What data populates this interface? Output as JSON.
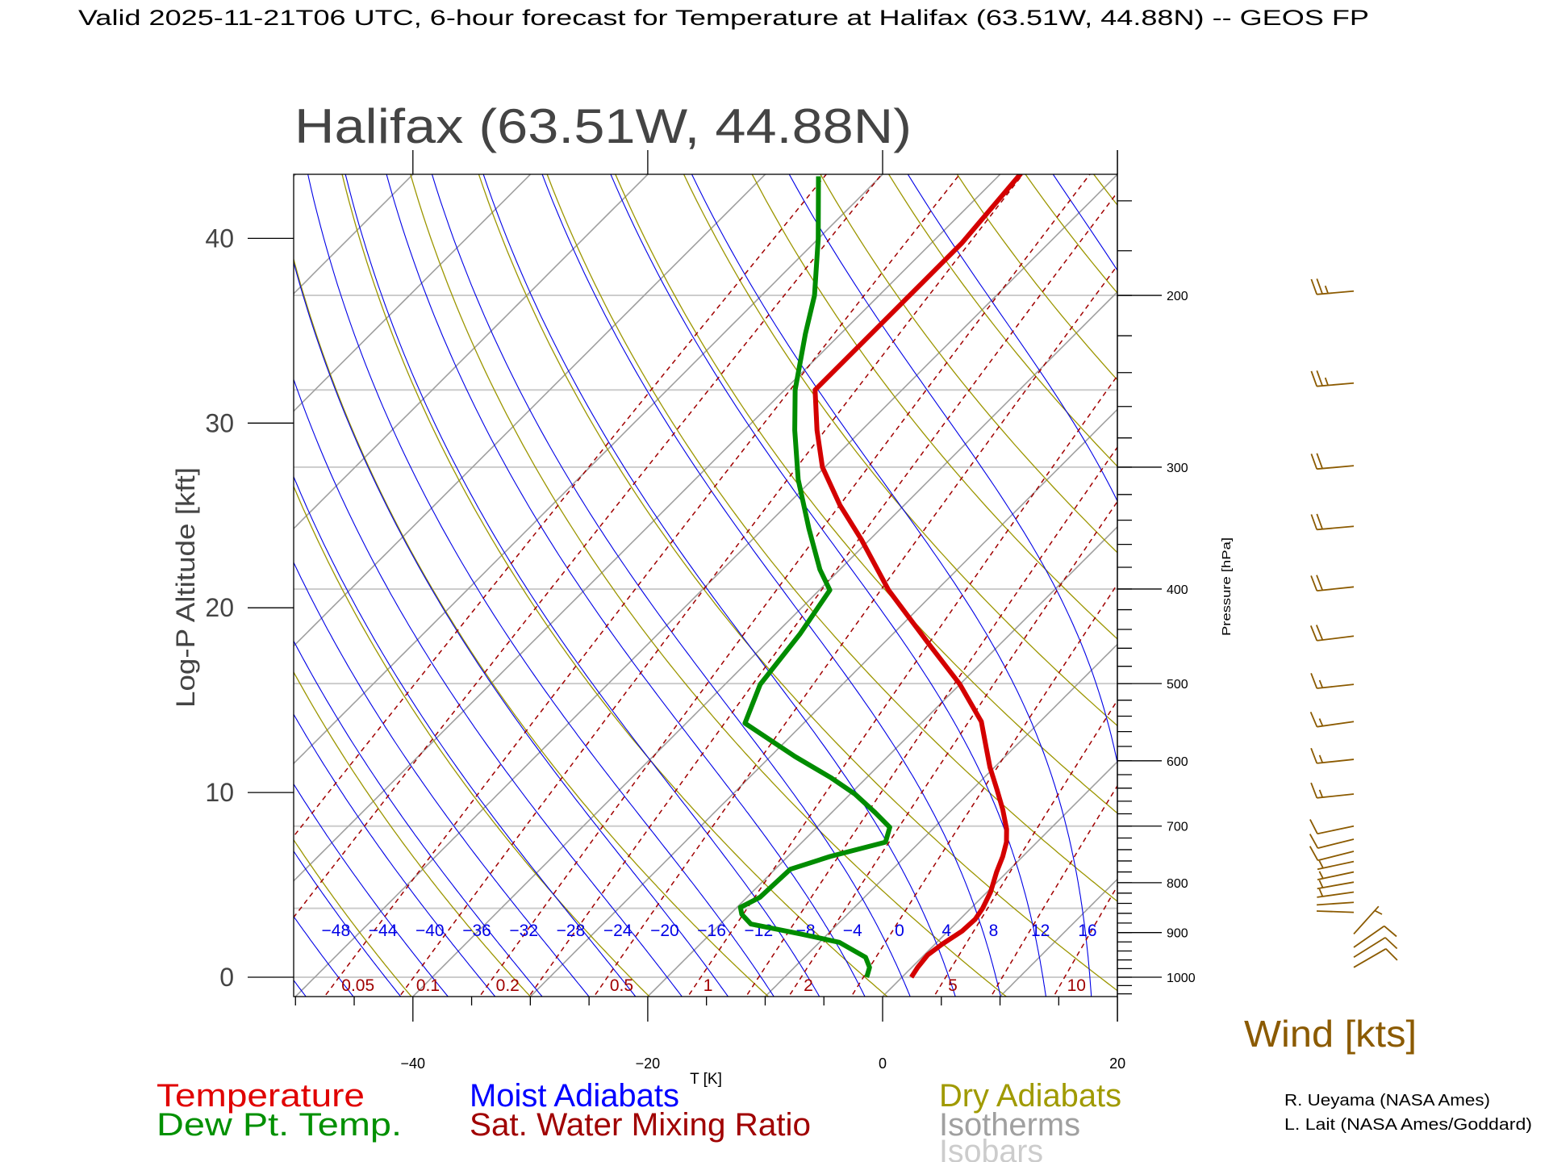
{
  "header": {
    "title": "Valid 2025-11-21T06 UTC, 6-hour forecast for Temperature at Halifax (63.51W, 44.88N) -- GEOS FP"
  },
  "chart_data": {
    "type": "skew-t",
    "title": "Halifax (63.51W, 44.88N)",
    "xlabel": "T [K]",
    "ylabel_left": "Log-P Altitude [kft]",
    "ylabel_right": "Pressure [hPa]",
    "xlim": [
      -50,
      20
    ],
    "pressure_range_hpa": [
      1046,
      150
    ],
    "x_ticks": [
      "−40",
      "−20",
      "0",
      "20"
    ],
    "x_tick_values": [
      -40,
      -20,
      0,
      20
    ],
    "altitude_ticks": [
      "0",
      "10",
      "20",
      "30",
      "40"
    ],
    "altitude_tick_values_kft": [
      0,
      10,
      20,
      30,
      40
    ],
    "pressure_ticks": [
      "1000",
      "900",
      "800",
      "700",
      "600",
      "500",
      "400",
      "300",
      "200"
    ],
    "pressure_tick_values": [
      1000,
      900,
      800,
      700,
      600,
      500,
      400,
      300,
      200
    ],
    "isobars_hpa": [
      1000,
      850,
      700,
      500,
      400,
      300,
      250,
      200
    ],
    "isotherm_step_c": 10,
    "dry_adiabat_step_k": 10,
    "moist_adiabat_labels": [
      "−48",
      "−44",
      "−40",
      "−36",
      "−32",
      "−28",
      "−24",
      "−20",
      "−16",
      "−12",
      "−8",
      "−4",
      "0",
      "4",
      "8",
      "12",
      "16"
    ],
    "moist_adiabat_values_c": [
      -48,
      -44,
      -40,
      -36,
      -32,
      -28,
      -24,
      -20,
      -16,
      -12,
      -8,
      -4,
      0,
      4,
      8,
      12,
      16
    ],
    "mixing_ratio_labels": [
      "0.05",
      "0.1",
      "0.2",
      "0.5",
      "1",
      "2",
      "5",
      "10"
    ],
    "mixing_ratio_values_gkg": [
      0.05,
      0.1,
      0.2,
      0.5,
      1,
      2,
      5,
      10
    ],
    "mixing_ratio_extra_lines_gkg": [
      0.01,
      0.02,
      0.3,
      1.5,
      3,
      7,
      15,
      20
    ],
    "temperature": {
      "pressure_hpa": [
        1000,
        977,
        949,
        925,
        897,
        872,
        850,
        818,
        780,
        752,
        727,
        705,
        673,
        642,
        609,
        584,
        547,
        501,
        456,
        401,
        356,
        328,
        300,
        275,
        250,
        225,
        202,
        177,
        150
      ],
      "temp_c": [
        0.8,
        0.5,
        0.3,
        0.6,
        1.2,
        1.3,
        1.0,
        0.3,
        -0.9,
        -1.7,
        -2.6,
        -3.7,
        -5.7,
        -7.9,
        -10.4,
        -12.2,
        -15.0,
        -20.0,
        -26.0,
        -34.1,
        -40.7,
        -45.5,
        -50.2,
        -53.8,
        -57.4,
        -57.4,
        -57.4,
        -57.4,
        -58.3
      ]
    },
    "dewpoint": {
      "pressure_hpa": [
        1000,
        977,
        954,
        921,
        903,
        882,
        862,
        848,
        828,
        775,
        752,
        727,
        702,
        678,
        649,
        624,
        594,
        549,
        501,
        445,
        401,
        382,
        347,
        309,
        275,
        250,
        219,
        200,
        175,
        151
      ],
      "temp_c": [
        -3.0,
        -3.6,
        -4.8,
        -8.3,
        -12.3,
        -17.4,
        -19.0,
        -19.7,
        -18.9,
        -18.7,
        -16.4,
        -12.9,
        -13.8,
        -16.3,
        -19.6,
        -23.1,
        -27.9,
        -35.0,
        -37.0,
        -37.9,
        -39.1,
        -41.7,
        -46.1,
        -51.2,
        -55.7,
        -59.1,
        -63.0,
        -65.5,
        -70.0,
        -75.3
      ]
    },
    "wind": [
      {
        "p": 198,
        "speed_kts": 25,
        "dir_deg": 265
      },
      {
        "p": 246,
        "speed_kts": 25,
        "dir_deg": 265
      },
      {
        "p": 299,
        "speed_kts": 20,
        "dir_deg": 265
      },
      {
        "p": 345,
        "speed_kts": 20,
        "dir_deg": 265
      },
      {
        "p": 398,
        "speed_kts": 20,
        "dir_deg": 264
      },
      {
        "p": 447,
        "speed_kts": 20,
        "dir_deg": 263
      },
      {
        "p": 501,
        "speed_kts": 15,
        "dir_deg": 264
      },
      {
        "p": 547,
        "speed_kts": 15,
        "dir_deg": 262
      },
      {
        "p": 598,
        "speed_kts": 15,
        "dir_deg": 264
      },
      {
        "p": 649,
        "speed_kts": 15,
        "dir_deg": 264
      },
      {
        "p": 700,
        "speed_kts": 10,
        "dir_deg": 258
      },
      {
        "p": 722,
        "speed_kts": 10,
        "dir_deg": 256
      },
      {
        "p": 743,
        "speed_kts": 10,
        "dir_deg": 256
      },
      {
        "p": 761,
        "speed_kts": 5,
        "dir_deg": 258
      },
      {
        "p": 780,
        "speed_kts": 5,
        "dir_deg": 258
      },
      {
        "p": 799,
        "speed_kts": 5,
        "dir_deg": 260
      },
      {
        "p": 818,
        "speed_kts": 5,
        "dir_deg": 262
      },
      {
        "p": 838,
        "speed_kts": 2,
        "dir_deg": 266
      },
      {
        "p": 858,
        "speed_kts": 2,
        "dir_deg": 272
      },
      {
        "p": 903,
        "speed_kts": 5,
        "dir_deg": 42
      },
      {
        "p": 932,
        "speed_kts": 10,
        "dir_deg": 55
      },
      {
        "p": 954,
        "speed_kts": 10,
        "dir_deg": 58
      },
      {
        "p": 977,
        "speed_kts": 10,
        "dir_deg": 60
      }
    ]
  },
  "legend": {
    "temperature": "Temperature",
    "dewpoint": "Dew Pt. Temp.",
    "moist": "Moist Adiabats",
    "mixing": "Sat. Water Mixing Ratio",
    "dry": "Dry Adiabats",
    "isotherms": "Isotherms",
    "isobars": "Isobars"
  },
  "wind_label": "Wind [kts]",
  "credits": [
    "R. Ueyama (NASA Ames)",
    "L. Lait (NASA Ames/Goddard)"
  ],
  "colors": {
    "temperature": "#d40000",
    "dewpoint": "#008c00",
    "moist": "#0000e6",
    "mixing": "#a00000",
    "dry": "#9c9600",
    "isotherm": "#a0a0a0",
    "isobar": "#cccccc",
    "wind": "#8b5a00"
  }
}
